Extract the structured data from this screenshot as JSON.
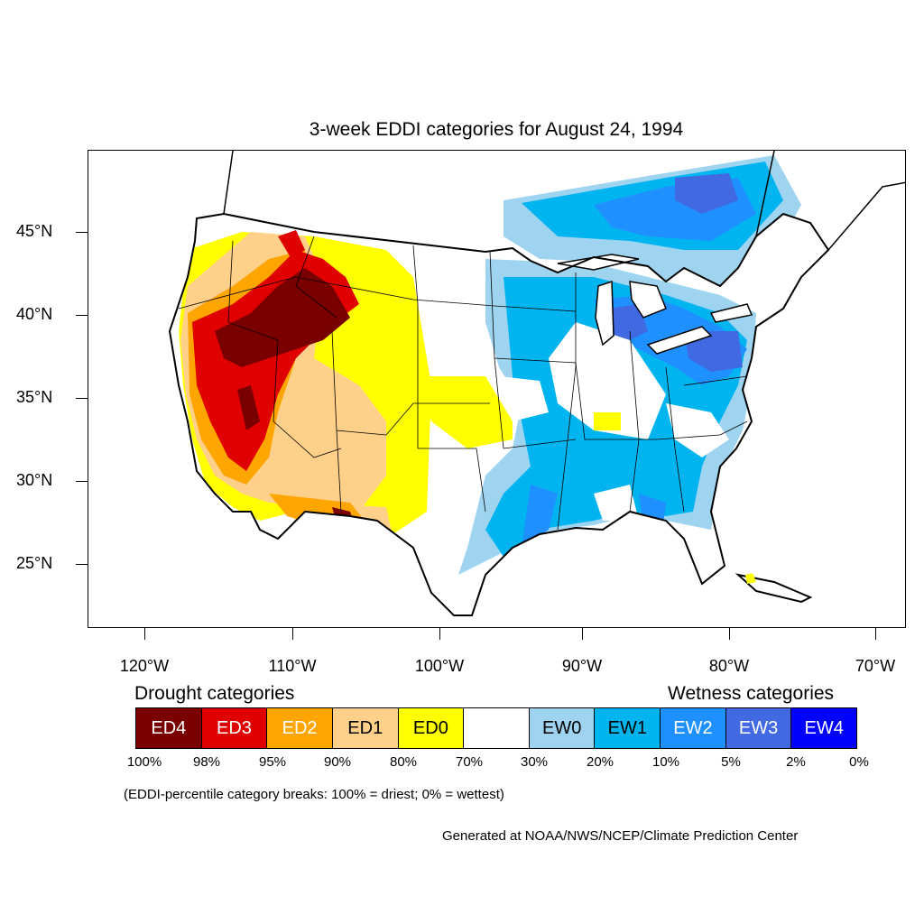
{
  "title": "3-week EDDI categories for August 24, 1994",
  "lat_labels": [
    "45°N",
    "40°N",
    "35°N",
    "30°N",
    "25°N"
  ],
  "lon_labels": [
    "120°W",
    "110°W",
    "100°W",
    "90°W",
    "80°W",
    "70°W"
  ],
  "legend": {
    "drought_heading": "Drought categories",
    "wetness_heading": "Wetness categories",
    "categories": [
      {
        "label": "ED4",
        "color": "#7a0000",
        "text_color": "#ffffff"
      },
      {
        "label": "ED3",
        "color": "#e00000",
        "text_color": "#ffffff"
      },
      {
        "label": "ED2",
        "color": "#ffa500",
        "text_color": "#ffffff"
      },
      {
        "label": "ED1",
        "color": "#ffd08a",
        "text_color": "#000000"
      },
      {
        "label": "ED0",
        "color": "#ffff00",
        "text_color": "#000000"
      },
      {
        "label": "",
        "color": "#ffffff",
        "text_color": "#000000"
      },
      {
        "label": "EW0",
        "color": "#9fd4f0",
        "text_color": "#000000"
      },
      {
        "label": "EW1",
        "color": "#00b4f0",
        "text_color": "#000000"
      },
      {
        "label": "EW2",
        "color": "#1e90ff",
        "text_color": "#ffffff"
      },
      {
        "label": "EW3",
        "color": "#4169e1",
        "text_color": "#ffffff"
      },
      {
        "label": "EW4",
        "color": "#0000ff",
        "text_color": "#ffffff"
      }
    ],
    "breaks": [
      "100%",
      "98%",
      "95%",
      "90%",
      "80%",
      "70%",
      "30%",
      "20%",
      "10%",
      "5%",
      "2%",
      "0%"
    ]
  },
  "note": "(EDDI-percentile category breaks: 100% = driest; 0% = wettest)",
  "credit": "Generated at NOAA/NWS/NCEP/Climate Prediction Center"
}
